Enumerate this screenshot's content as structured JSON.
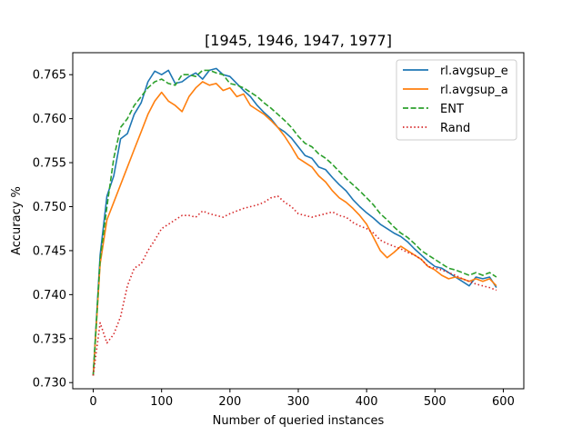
{
  "chart_data": {
    "type": "line",
    "title": "[1945, 1946, 1947, 1977]",
    "xlabel": "Number of queried instances",
    "ylabel": "Accuracy %",
    "xlim": [
      -30,
      630
    ],
    "ylim": [
      0.7293,
      0.7675
    ],
    "xticks": [
      0,
      100,
      200,
      300,
      400,
      500,
      600
    ],
    "yticks": [
      0.73,
      0.735,
      0.74,
      0.745,
      0.75,
      0.755,
      0.76,
      0.765
    ],
    "ytick_labels": [
      "0.730",
      "0.735",
      "0.740",
      "0.745",
      "0.750",
      "0.755",
      "0.760",
      "0.765"
    ],
    "legend_position": "upper right",
    "series": [
      {
        "name": "rl.avgsup_e",
        "color": "#1f77b4",
        "style": "solid",
        "x": [
          0,
          10,
          20,
          30,
          40,
          50,
          60,
          70,
          80,
          90,
          100,
          110,
          120,
          130,
          140,
          150,
          160,
          170,
          180,
          190,
          200,
          210,
          220,
          230,
          240,
          250,
          260,
          270,
          280,
          290,
          300,
          310,
          320,
          330,
          340,
          350,
          360,
          370,
          380,
          390,
          400,
          410,
          420,
          430,
          440,
          450,
          460,
          470,
          480,
          490,
          500,
          510,
          520,
          530,
          540,
          550,
          560,
          570,
          580,
          590
        ],
        "y": [
          0.7308,
          0.7445,
          0.7512,
          0.7535,
          0.7577,
          0.7583,
          0.7605,
          0.7618,
          0.7642,
          0.7654,
          0.765,
          0.7655,
          0.764,
          0.7642,
          0.7648,
          0.7652,
          0.7645,
          0.7655,
          0.7657,
          0.765,
          0.7648,
          0.764,
          0.7632,
          0.7625,
          0.7615,
          0.7607,
          0.76,
          0.759,
          0.7585,
          0.7578,
          0.7568,
          0.7558,
          0.7555,
          0.7545,
          0.7542,
          0.7533,
          0.7525,
          0.7518,
          0.7508,
          0.75,
          0.7493,
          0.7487,
          0.748,
          0.7475,
          0.747,
          0.7466,
          0.746,
          0.7452,
          0.7445,
          0.7438,
          0.7432,
          0.743,
          0.7425,
          0.742,
          0.7415,
          0.741,
          0.742,
          0.7418,
          0.742,
          0.7408
        ]
      },
      {
        "name": "rl.avgsup_a",
        "color": "#ff7f0e",
        "style": "solid",
        "x": [
          0,
          10,
          20,
          30,
          40,
          50,
          60,
          70,
          80,
          90,
          100,
          110,
          120,
          130,
          140,
          150,
          160,
          170,
          180,
          190,
          200,
          210,
          220,
          230,
          240,
          250,
          260,
          270,
          280,
          290,
          300,
          310,
          320,
          330,
          340,
          350,
          360,
          370,
          380,
          390,
          400,
          410,
          420,
          430,
          440,
          450,
          460,
          470,
          480,
          490,
          500,
          510,
          520,
          530,
          540,
          550,
          560,
          570,
          580,
          590
        ],
        "y": [
          0.7308,
          0.7435,
          0.7485,
          0.7505,
          0.7525,
          0.7545,
          0.7565,
          0.7585,
          0.7605,
          0.762,
          0.763,
          0.762,
          0.7615,
          0.7608,
          0.7625,
          0.7635,
          0.7642,
          0.7638,
          0.764,
          0.7632,
          0.7635,
          0.7625,
          0.7628,
          0.7615,
          0.761,
          0.7605,
          0.7598,
          0.759,
          0.758,
          0.7568,
          0.7555,
          0.755,
          0.7545,
          0.7535,
          0.7528,
          0.7518,
          0.751,
          0.7505,
          0.7498,
          0.749,
          0.748,
          0.7465,
          0.745,
          0.7442,
          0.7448,
          0.7455,
          0.745,
          0.7445,
          0.744,
          0.7432,
          0.7428,
          0.7422,
          0.7418,
          0.742,
          0.7418,
          0.7415,
          0.7418,
          0.7415,
          0.7418,
          0.741
        ]
      },
      {
        "name": "ENT",
        "color": "#2ca02c",
        "style": "dashed",
        "x": [
          0,
          10,
          20,
          30,
          40,
          50,
          60,
          70,
          80,
          90,
          100,
          110,
          120,
          130,
          140,
          150,
          160,
          170,
          180,
          190,
          200,
          210,
          220,
          230,
          240,
          250,
          260,
          270,
          280,
          290,
          300,
          310,
          320,
          330,
          340,
          350,
          360,
          370,
          380,
          390,
          400,
          410,
          420,
          430,
          440,
          450,
          460,
          470,
          480,
          490,
          500,
          510,
          520,
          530,
          540,
          550,
          560,
          570,
          580,
          590
        ],
        "y": [
          0.7308,
          0.744,
          0.75,
          0.7555,
          0.759,
          0.76,
          0.7615,
          0.7625,
          0.7635,
          0.7642,
          0.7645,
          0.764,
          0.7638,
          0.765,
          0.765,
          0.7648,
          0.7655,
          0.7655,
          0.7652,
          0.765,
          0.764,
          0.7638,
          0.7635,
          0.763,
          0.7625,
          0.7618,
          0.7612,
          0.7605,
          0.7598,
          0.759,
          0.758,
          0.7572,
          0.7568,
          0.756,
          0.7555,
          0.7548,
          0.754,
          0.7532,
          0.7525,
          0.7518,
          0.751,
          0.7502,
          0.7492,
          0.7485,
          0.7477,
          0.747,
          0.7465,
          0.7458,
          0.745,
          0.7445,
          0.744,
          0.7435,
          0.743,
          0.7428,
          0.7425,
          0.7422,
          0.7425,
          0.7422,
          0.7425,
          0.742
        ]
      },
      {
        "name": "Rand",
        "color": "#d62728",
        "style": "dotted",
        "x": [
          0,
          10,
          20,
          30,
          40,
          50,
          60,
          70,
          80,
          90,
          100,
          110,
          120,
          130,
          140,
          150,
          160,
          170,
          180,
          190,
          200,
          210,
          220,
          230,
          240,
          250,
          260,
          270,
          280,
          290,
          300,
          310,
          320,
          330,
          340,
          350,
          360,
          370,
          380,
          390,
          400,
          410,
          420,
          430,
          440,
          450,
          460,
          470,
          480,
          490,
          500,
          510,
          520,
          530,
          540,
          550,
          560,
          570,
          580,
          590
        ],
        "y": [
          0.7308,
          0.7368,
          0.7345,
          0.7355,
          0.7375,
          0.741,
          0.743,
          0.7435,
          0.745,
          0.7462,
          0.7475,
          0.748,
          0.7485,
          0.749,
          0.749,
          0.7488,
          0.7495,
          0.7492,
          0.749,
          0.7488,
          0.7492,
          0.7495,
          0.7498,
          0.75,
          0.7502,
          0.7505,
          0.751,
          0.7512,
          0.7505,
          0.75,
          0.7492,
          0.749,
          0.7488,
          0.749,
          0.7492,
          0.7494,
          0.749,
          0.7488,
          0.7482,
          0.7478,
          0.7475,
          0.747,
          0.7462,
          0.7458,
          0.7455,
          0.7452,
          0.7448,
          0.7445,
          0.744,
          0.7432,
          0.743,
          0.7428,
          0.7425,
          0.7422,
          0.7418,
          0.7415,
          0.7412,
          0.741,
          0.7408,
          0.7405
        ]
      }
    ]
  }
}
